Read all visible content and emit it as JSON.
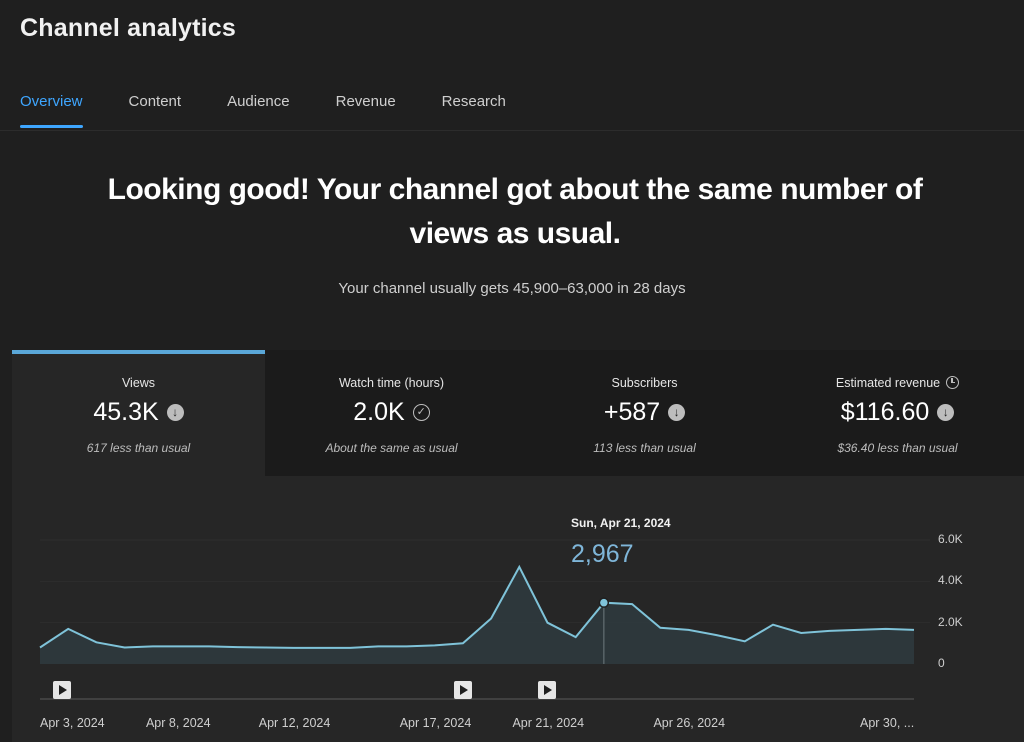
{
  "header": {
    "title": "Channel analytics"
  },
  "tabs": [
    {
      "label": "Overview",
      "active": true
    },
    {
      "label": "Content",
      "active": false
    },
    {
      "label": "Audience",
      "active": false
    },
    {
      "label": "Revenue",
      "active": false
    },
    {
      "label": "Research",
      "active": false
    }
  ],
  "summary": {
    "headline": "Looking good! Your channel got about the same number of views as usual.",
    "subline": "Your channel usually gets 45,900–63,000 in 28 days"
  },
  "metrics": [
    {
      "label": "Views",
      "value": "45.3K",
      "note": "617 less than usual",
      "status_icon": "arrow-down-icon"
    },
    {
      "label": "Watch time (hours)",
      "value": "2.0K",
      "note": "About the same as usual",
      "status_icon": "check-icon"
    },
    {
      "label": "Subscribers",
      "value": "+587",
      "note": "113 less than usual",
      "status_icon": "arrow-down-icon"
    },
    {
      "label": "Estimated revenue",
      "value": "$116.60",
      "note": "$36.40 less than usual",
      "status_icon": "arrow-down-icon",
      "extra_icon": "clock-icon"
    }
  ],
  "tooltip": {
    "date": "Sun, Apr 21, 2024",
    "value": "2,967"
  },
  "colors": {
    "accent": "#3ea6ff",
    "line": "#7fc3d9",
    "area": "#2f3b3f",
    "background": "#1f1f1f"
  },
  "chart_data": {
    "type": "area",
    "series": [
      {
        "values": [
          800,
          1700,
          1050,
          800,
          850,
          850,
          850,
          820,
          800,
          780,
          780,
          780,
          850,
          850,
          900,
          1000,
          2200,
          4700,
          2000,
          1300,
          2967,
          2900,
          1750,
          1650,
          1400,
          1100,
          1900,
          1500,
          1600,
          1650,
          1700,
          1650
        ]
      }
    ],
    "x_ticks": [
      "Apr 3, 2024",
      "Apr 8, 2024",
      "Apr 12, 2024",
      "Apr 17, 2024",
      "Apr 21, 2024",
      "Apr 26, 2024",
      "Apr 30, ..."
    ],
    "y_ticks": [
      "6.0K",
      "4.0K",
      "2.0K",
      "0"
    ],
    "ylim": [
      0,
      6000
    ],
    "highlight": {
      "date": "Sun, Apr 21, 2024",
      "value": 2967
    },
    "video_markers": [
      "Apr 3, 2024",
      "Apr 17, 2024",
      "Apr 21, 2024"
    ]
  }
}
